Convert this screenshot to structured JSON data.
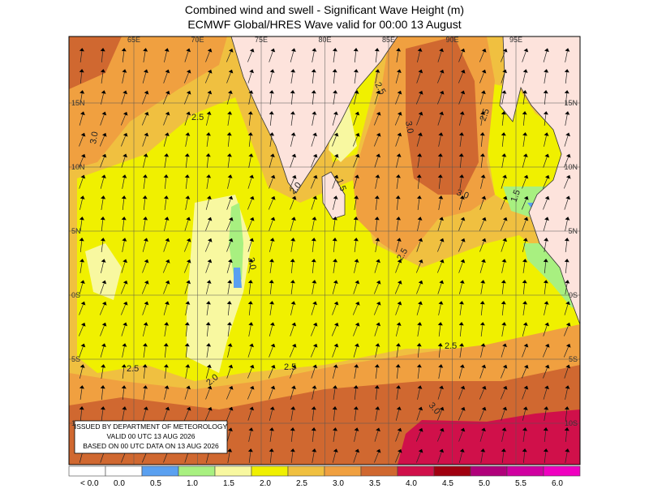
{
  "title": "Combined wind and swell - Significant Wave Height (m)",
  "subtitle": "ECMWF Global/HRES Wave valid for 00:00 13 August",
  "longitude_labels": [
    "65E",
    "70E",
    "75E",
    "80E",
    "85E",
    "90E",
    "95E"
  ],
  "latitude_labels": [
    "15N",
    "10N",
    "5N",
    "0S",
    "5S",
    "10S"
  ],
  "contour_labels": [
    "3.0",
    "2.5",
    "2.5",
    "3.0",
    "3.0",
    "2.5",
    "2.0",
    "1.5",
    "2.0",
    "2.5",
    "2.5",
    "2.5",
    "2.5",
    "2.0",
    "3.0",
    "1.5"
  ],
  "issued_box": [
    "ISSUED BY DEPARTMENT OF METEOROLOGY",
    "VALID 00 UTC 13 AUG 2026",
    "BASED ON 00 UTC DATA ON 13 AUG 2026"
  ],
  "legend": {
    "labels": [
      "< 0.0",
      "0.0",
      "0.5",
      "1.0",
      "1.5",
      "2.0",
      "2.5",
      "3.0",
      "3.5",
      "4.0",
      "4.5",
      "5.0",
      "5.5",
      "6.0"
    ],
    "colors": [
      "#ffffff",
      "#ffffff",
      "#5aa0f0",
      "#a8f080",
      "#f8f8a0",
      "#f0f000",
      "#f0c040",
      "#f0a040",
      "#d06830",
      "#d0104a",
      "#a00010",
      "#b0007a",
      "#d000a0",
      "#f000c0"
    ]
  }
}
